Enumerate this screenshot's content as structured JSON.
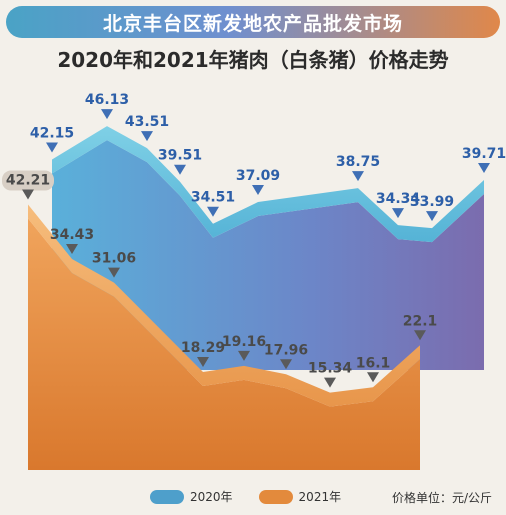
{
  "header": {
    "banner": "北京丰台区新发地农产品批发市场",
    "title": "2020年和2021年猪肉（白条猪）价格走势"
  },
  "chart_data": {
    "type": "area",
    "title": "2020年和2021年猪肉（白条猪）价格走势",
    "unit_label": "价格单位：元/公斤",
    "ylim": [
      0,
      50
    ],
    "series": [
      {
        "name": "2020年",
        "color": "#5aa7d4",
        "values": [
          42.15,
          46.13,
          43.51,
          39.51,
          34.51,
          37.09,
          38.75,
          34.34,
          33.99,
          39.71
        ]
      },
      {
        "name": "2021年",
        "color": "#e38a3c",
        "values": [
          42.21,
          34.43,
          31.06,
          18.29,
          19.16,
          17.96,
          15.34,
          16.1,
          22.1
        ]
      }
    ],
    "labels": {
      "s2020": [
        "42.15",
        "46.13",
        "43.51",
        "39.51",
        "34.51",
        "37.09",
        "38.75",
        "34.34",
        "33.99",
        "39.71"
      ],
      "s2021": [
        "42.21",
        "34.43",
        "31.06",
        "18.29",
        "19.16",
        "17.96",
        "15.34",
        "16.1",
        "22.1"
      ]
    }
  },
  "legend": {
    "s2020": "2020年",
    "s2021": "2021年",
    "unit": "价格单位：元/公斤"
  }
}
